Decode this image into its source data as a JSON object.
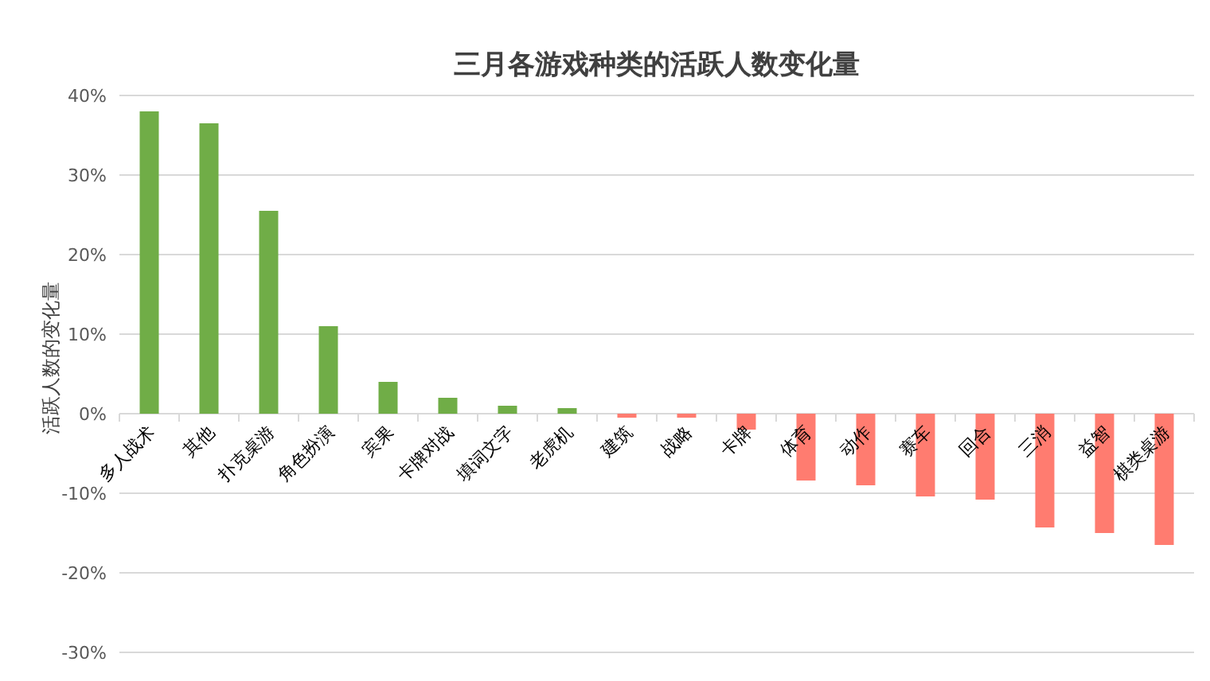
{
  "chart_data": {
    "type": "bar",
    "title": "三月各游戏种类的活跃人数变化量",
    "ylabel": "活跃人数的变化量",
    "categories": [
      "多人战术",
      "其他",
      "扑克桌游",
      "角色扮演",
      "宾果",
      "卡牌对战",
      "填词文字",
      "老虎机",
      "建筑",
      "战略",
      "卡牌",
      "体育",
      "动作",
      "赛车",
      "回合",
      "三消",
      "益智",
      "棋类桌游"
    ],
    "values": [
      38,
      36.5,
      25.5,
      11,
      4,
      2,
      1,
      0.7,
      -0.5,
      -0.5,
      -2,
      -8.4,
      -9,
      -10.4,
      -10.8,
      -14.3,
      -15,
      -16.5
    ],
    "colors": [
      "#70ad47",
      "#70ad47",
      "#70ad47",
      "#70ad47",
      "#70ad47",
      "#70ad47",
      "#70ad47",
      "#70ad47",
      "#ff7c70",
      "#ff7c70",
      "#ff7c70",
      "#ff7c70",
      "#ff7c70",
      "#ff7c70",
      "#ff7c70",
      "#ff7c70",
      "#ff7c70",
      "#ff7c70"
    ],
    "ylim": [
      -30,
      40
    ],
    "yticks": [
      {
        "value": -30,
        "label": "-30%"
      },
      {
        "value": -20,
        "label": "-20%"
      },
      {
        "value": -10,
        "label": "-10%"
      },
      {
        "value": 0,
        "label": "0%"
      },
      {
        "value": 10,
        "label": "10%"
      },
      {
        "value": 20,
        "label": "20%"
      },
      {
        "value": 30,
        "label": "30%"
      },
      {
        "value": 40,
        "label": "40%"
      }
    ],
    "grid": "y"
  }
}
